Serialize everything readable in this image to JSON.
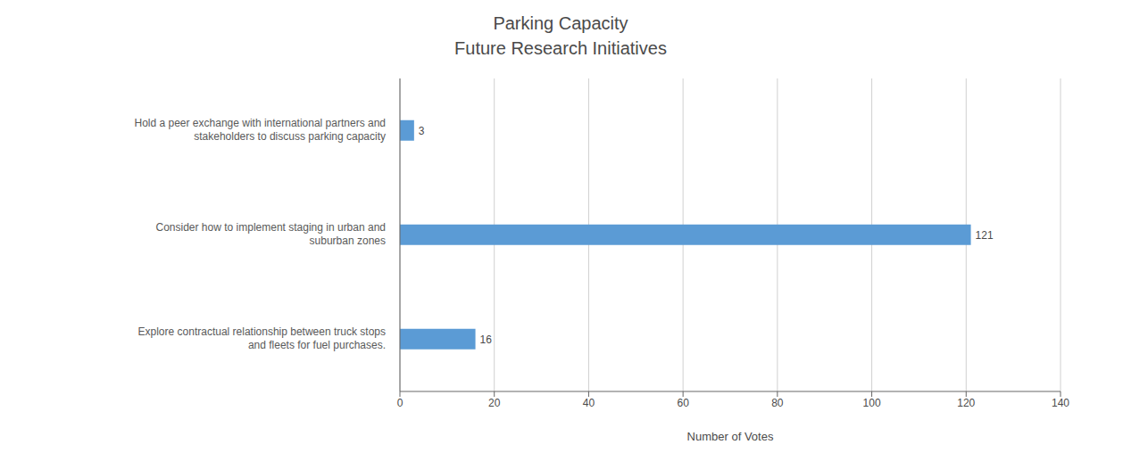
{
  "chart_data": {
    "type": "bar",
    "title": "Parking Capacity",
    "subtitle": "Future Research Initiatives",
    "orientation": "horizontal",
    "categories": [
      "Explore contractual relationship between truck stops\nand fleets for fuel purchases.",
      "Consider how to implement staging in urban and\nsuburban zones",
      "Hold a peer exchange with international partners and\nstakeholders to discuss parking capacity"
    ],
    "values": [
      16,
      121,
      3
    ],
    "color": "#5b9bd5",
    "x_label": "Number of Votes",
    "xlim": [
      0,
      140
    ],
    "xticks": [
      0,
      20,
      40,
      60,
      80,
      100,
      120,
      140
    ],
    "grid": true,
    "data_labels": true
  }
}
